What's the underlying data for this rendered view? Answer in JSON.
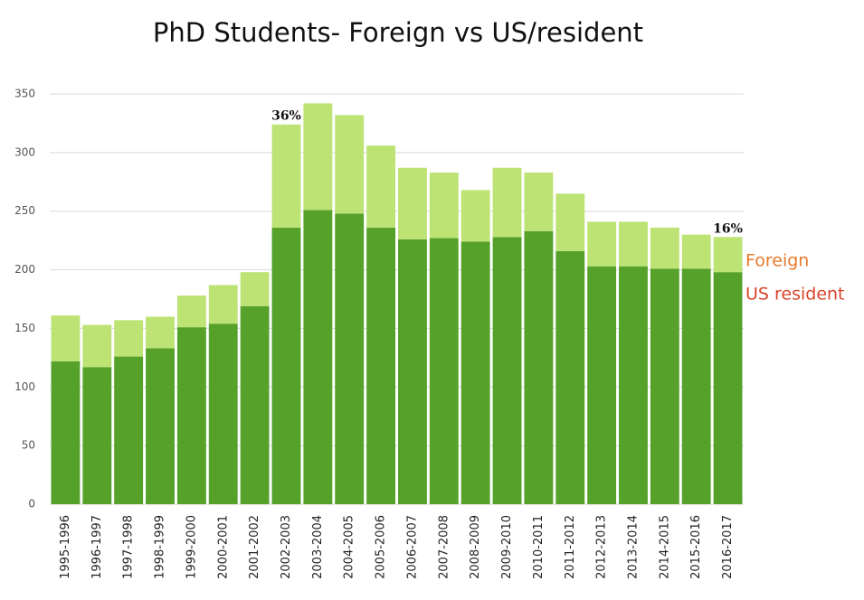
{
  "chart_data": {
    "type": "stacked_bar",
    "title": "PhD Students- Foreign vs US/resident",
    "categories": [
      "1995-1996",
      "1996-1997",
      "1997-1998",
      "1998-1999",
      "1999-2000",
      "2000-2001",
      "2001-2002",
      "2002-2003",
      "2003-2004",
      "2004-2005",
      "2005-2006",
      "2006-2007",
      "2007-2008",
      "2008-2009",
      "2009-2010",
      "2010-2011",
      "2011-2012",
      "2012-2013",
      "2013-2014",
      "2014-2015",
      "2015-2016",
      "2016-2017"
    ],
    "series": [
      {
        "name": "US resident",
        "color": "#55a12a",
        "label_color": "#d9442b",
        "values": [
          122,
          117,
          126,
          133,
          151,
          154,
          169,
          236,
          251,
          248,
          236,
          226,
          227,
          224,
          228,
          233,
          216,
          203,
          203,
          201,
          201,
          198
        ]
      },
      {
        "name": "Foreign",
        "color": "#bde375",
        "label_color": "#e87a2a",
        "values": [
          39,
          36,
          31,
          27,
          27,
          33,
          29,
          88,
          91,
          84,
          70,
          61,
          56,
          44,
          59,
          50,
          49,
          38,
          38,
          35,
          29,
          30
        ]
      }
    ],
    "annotations": [
      {
        "text": "36%",
        "category": "2002-2003"
      },
      {
        "text": "16%",
        "category": "2016-2017"
      }
    ],
    "ylim": [
      0,
      350
    ],
    "yticks": [
      0,
      50,
      100,
      150,
      200,
      250,
      300,
      350
    ],
    "grid": true,
    "legend": "right"
  }
}
